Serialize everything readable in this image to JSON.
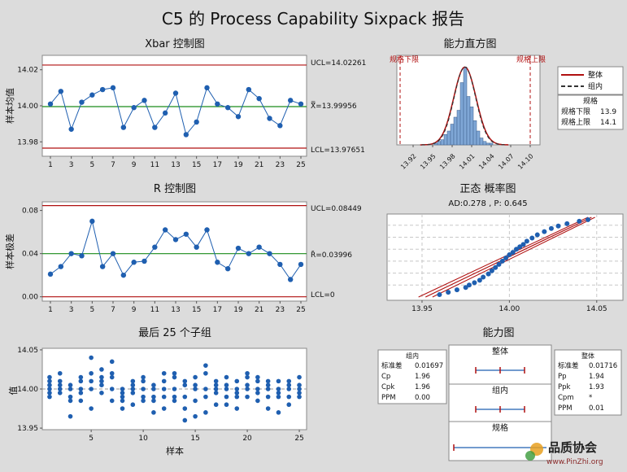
{
  "title": "C5 的 Process Capability Sixpack 报告",
  "colors": {
    "background": "#dcdcdc",
    "panel": "#ffffff",
    "limit_line": "#b01010",
    "center_line": "#1a8c1a",
    "series": "#1f5fb0",
    "histogram_fill": "#7fa7d6",
    "grid": "#c8c8c8"
  },
  "chart_data": [
    {
      "type": "line",
      "title": "Xbar 控制图",
      "ylabel": "样本均值",
      "x_ticks": [
        "1",
        "3",
        "5",
        "7",
        "9",
        "11",
        "13",
        "15",
        "17",
        "19",
        "21",
        "23",
        "25"
      ],
      "y_ticks": [
        "13.98",
        "14.00",
        "14.02"
      ],
      "ylim": [
        13.972,
        14.028
      ],
      "ucl_label": "UCL=14.02261",
      "center_label": "X̿=13.99956",
      "lcl_label": "LCL=13.97651",
      "ucl": 14.02261,
      "center": 13.99956,
      "lcl": 13.97651,
      "x": [
        1,
        2,
        3,
        4,
        5,
        6,
        7,
        8,
        9,
        10,
        11,
        12,
        13,
        14,
        15,
        16,
        17,
        18,
        19,
        20,
        21,
        22,
        23,
        24,
        25
      ],
      "values": [
        14.001,
        14.008,
        13.987,
        14.002,
        14.006,
        14.009,
        14.01,
        13.988,
        13.999,
        14.003,
        13.988,
        13.996,
        14.007,
        13.984,
        13.991,
        14.01,
        14.001,
        13.999,
        13.994,
        14.009,
        14.004,
        13.993,
        13.989,
        14.003,
        14.001
      ]
    },
    {
      "type": "line",
      "title": "R 控制图",
      "ylabel": "样本极差",
      "x_ticks": [
        "1",
        "3",
        "5",
        "7",
        "9",
        "11",
        "13",
        "15",
        "17",
        "19",
        "21",
        "23",
        "25"
      ],
      "y_ticks": [
        "0.00",
        "0.04",
        "0.08"
      ],
      "ylim": [
        -0.004,
        0.088
      ],
      "ucl_label": "UCL=0.08449",
      "center_label": "R̄=0.03996",
      "lcl_label": "LCL=0",
      "ucl": 0.08449,
      "center": 0.03996,
      "lcl": 0,
      "x": [
        1,
        2,
        3,
        4,
        5,
        6,
        7,
        8,
        9,
        10,
        11,
        12,
        13,
        14,
        15,
        16,
        17,
        18,
        19,
        20,
        21,
        22,
        23,
        24,
        25
      ],
      "values": [
        0.021,
        0.028,
        0.04,
        0.038,
        0.07,
        0.028,
        0.04,
        0.02,
        0.032,
        0.033,
        0.046,
        0.062,
        0.053,
        0.058,
        0.046,
        0.062,
        0.032,
        0.026,
        0.045,
        0.04,
        0.046,
        0.04,
        0.03,
        0.016,
        0.03
      ]
    },
    {
      "type": "scatter",
      "title": "最后 25 个子组",
      "ylabel": "值",
      "xlabel": "样本",
      "x_ticks": [
        "5",
        "10",
        "15",
        "20",
        "25"
      ],
      "y_ticks": [
        "13.95",
        "14.00",
        "14.05"
      ],
      "xlim": [
        0.3,
        25.7
      ],
      "ylim": [
        13.948,
        14.052
      ],
      "points": [
        [
          1,
          13.99
        ],
        [
          1,
          14.0
        ],
        [
          1,
          14.01
        ],
        [
          1,
          14.015
        ],
        [
          1,
          14.005
        ],
        [
          1,
          13.995
        ],
        [
          2,
          14.02
        ],
        [
          2,
          14.005
        ],
        [
          2,
          13.995
        ],
        [
          2,
          14.0
        ],
        [
          2,
          14.01
        ],
        [
          3,
          13.965
        ],
        [
          3,
          13.985
        ],
        [
          3,
          13.99
        ],
        [
          3,
          14.0
        ],
        [
          3,
          14.005
        ],
        [
          4,
          13.985
        ],
        [
          4,
          14.0
        ],
        [
          4,
          14.01
        ],
        [
          4,
          14.015
        ],
        [
          4,
          13.995
        ],
        [
          5,
          13.975
        ],
        [
          5,
          14.0
        ],
        [
          5,
          14.01
        ],
        [
          5,
          14.04
        ],
        [
          5,
          14.02
        ],
        [
          6,
          13.995
        ],
        [
          6,
          14.005
        ],
        [
          6,
          14.025
        ],
        [
          6,
          14.015
        ],
        [
          6,
          14.01
        ],
        [
          7,
          13.985
        ],
        [
          7,
          14.0
        ],
        [
          7,
          14.015
        ],
        [
          7,
          14.02
        ],
        [
          7,
          14.035
        ],
        [
          8,
          13.975
        ],
        [
          8,
          13.99
        ],
        [
          8,
          14.0
        ],
        [
          8,
          13.985
        ],
        [
          8,
          13.995
        ],
        [
          9,
          13.98
        ],
        [
          9,
          13.995
        ],
        [
          9,
          14.01
        ],
        [
          9,
          14.005
        ],
        [
          9,
          14.0
        ],
        [
          10,
          13.985
        ],
        [
          10,
          14.0
        ],
        [
          10,
          14.01
        ],
        [
          10,
          14.015
        ],
        [
          10,
          13.99
        ],
        [
          11,
          13.985
        ],
        [
          11,
          13.99
        ],
        [
          11,
          14.0
        ],
        [
          11,
          13.97
        ],
        [
          11,
          14.005
        ],
        [
          12,
          13.975
        ],
        [
          12,
          14.0
        ],
        [
          12,
          14.01
        ],
        [
          12,
          14.02
        ],
        [
          12,
          13.99
        ],
        [
          13,
          13.985
        ],
        [
          13,
          14.0
        ],
        [
          13,
          14.015
        ],
        [
          13,
          14.02
        ],
        [
          13,
          13.99
        ],
        [
          14,
          13.96
        ],
        [
          14,
          13.975
        ],
        [
          14,
          13.99
        ],
        [
          14,
          14.01
        ],
        [
          14,
          14.005
        ],
        [
          15,
          13.965
        ],
        [
          15,
          13.985
        ],
        [
          15,
          14.0
        ],
        [
          15,
          14.015
        ],
        [
          15,
          14.005
        ],
        [
          16,
          13.97
        ],
        [
          16,
          13.99
        ],
        [
          16,
          14.0
        ],
        [
          16,
          14.02
        ],
        [
          16,
          14.03
        ],
        [
          17,
          13.98
        ],
        [
          17,
          13.995
        ],
        [
          17,
          14.0
        ],
        [
          17,
          14.01
        ],
        [
          17,
          14.005
        ],
        [
          18,
          13.98
        ],
        [
          18,
          13.99
        ],
        [
          18,
          14.0
        ],
        [
          18,
          14.005
        ],
        [
          18,
          14.015
        ],
        [
          19,
          13.975
        ],
        [
          19,
          13.99
        ],
        [
          19,
          14.0
        ],
        [
          19,
          14.01
        ],
        [
          19,
          13.995
        ],
        [
          20,
          13.99
        ],
        [
          20,
          14.0
        ],
        [
          20,
          14.005
        ],
        [
          20,
          14.015
        ],
        [
          20,
          14.02
        ],
        [
          21,
          13.985
        ],
        [
          21,
          13.995
        ],
        [
          21,
          14.0
        ],
        [
          21,
          14.01
        ],
        [
          21,
          14.015
        ],
        [
          22,
          13.975
        ],
        [
          22,
          13.99
        ],
        [
          22,
          14.0
        ],
        [
          22,
          14.005
        ],
        [
          22,
          14.01
        ],
        [
          23,
          13.97
        ],
        [
          23,
          13.99
        ],
        [
          23,
          14.0
        ],
        [
          23,
          14.01
        ],
        [
          23,
          13.995
        ],
        [
          24,
          13.98
        ],
        [
          24,
          13.99
        ],
        [
          24,
          14.0
        ],
        [
          24,
          14.005
        ],
        [
          24,
          14.01
        ],
        [
          25,
          13.99
        ],
        [
          25,
          14.0
        ],
        [
          25,
          14.005
        ],
        [
          25,
          14.015
        ],
        [
          25,
          13.995
        ]
      ]
    },
    {
      "type": "bar",
      "title": "能力直方图",
      "lsl_label": "规格下限",
      "usl_label": "规格上限",
      "x_ticks": [
        "13.92",
        "13.95",
        "13.98",
        "14.01",
        "14.04",
        "14.07",
        "14.10"
      ],
      "xlim": [
        13.895,
        14.115
      ],
      "lsl": 13.9,
      "usl": 14.1,
      "bin_centers": [
        13.955,
        13.96,
        13.965,
        13.97,
        13.975,
        13.98,
        13.985,
        13.99,
        13.995,
        14.0,
        14.005,
        14.01,
        14.015,
        14.02,
        14.025,
        14.03,
        14.035,
        14.04
      ],
      "bin_width": 0.005,
      "counts": [
        1,
        2,
        3,
        6,
        8,
        12,
        16,
        20,
        36,
        45,
        28,
        22,
        14,
        8,
        4,
        2,
        1,
        1
      ],
      "curve_ylim": [
        0,
        48
      ],
      "legend": [
        "整体",
        "组内"
      ],
      "spec_title": "规格",
      "spec_rows": [
        [
          "规格下限",
          "13.9"
        ],
        [
          "规格上限",
          "14.1"
        ]
      ]
    },
    {
      "type": "scatter",
      "title": "正态 概率图",
      "subtitle": "AD:0.278 , P: 0.645",
      "x_ticks": [
        "13.95",
        "14.00",
        "14.05"
      ],
      "xlim": [
        13.93,
        14.065
      ],
      "ylim": [
        0,
        1
      ],
      "points": [
        [
          13.96,
          0.03
        ],
        [
          13.965,
          0.06
        ],
        [
          13.97,
          0.09
        ],
        [
          13.975,
          0.12
        ],
        [
          13.977,
          0.15
        ],
        [
          13.98,
          0.18
        ],
        [
          13.983,
          0.21
        ],
        [
          13.985,
          0.25
        ],
        [
          13.988,
          0.29
        ],
        [
          13.99,
          0.33
        ],
        [
          13.992,
          0.37
        ],
        [
          13.994,
          0.41
        ],
        [
          13.996,
          0.45
        ],
        [
          13.998,
          0.49
        ],
        [
          14.0,
          0.53
        ],
        [
          14.002,
          0.56
        ],
        [
          14.004,
          0.6
        ],
        [
          14.006,
          0.63
        ],
        [
          14.008,
          0.66
        ],
        [
          14.01,
          0.7
        ],
        [
          14.013,
          0.74
        ],
        [
          14.016,
          0.78
        ],
        [
          14.02,
          0.82
        ],
        [
          14.024,
          0.86
        ],
        [
          14.028,
          0.89
        ],
        [
          14.033,
          0.92
        ],
        [
          14.04,
          0.95
        ],
        [
          14.045,
          0.97
        ]
      ],
      "fit_line": [
        [
          13.952,
          0.0
        ],
        [
          14.047,
          1.0
        ]
      ]
    }
  ],
  "cap": {
    "title": "能力图",
    "within_label": "组内",
    "overall_label": "整体",
    "strip_titles": [
      "整体",
      "组内",
      "规格"
    ],
    "within_rows": [
      [
        "标准差",
        "0.01697"
      ],
      [
        "Cp",
        "1.96"
      ],
      [
        "Cpk",
        "1.96"
      ],
      [
        "PPM",
        "0.00"
      ]
    ],
    "overall_rows": [
      [
        "标准差",
        "0.01716"
      ],
      [
        "Pp",
        "1.94"
      ],
      [
        "Ppk",
        "1.93"
      ],
      [
        "Cpm",
        "*"
      ],
      [
        "PPM",
        "0.01"
      ]
    ]
  },
  "logo": {
    "brand": "品质协会",
    "url": "www.PinZhi.org"
  }
}
